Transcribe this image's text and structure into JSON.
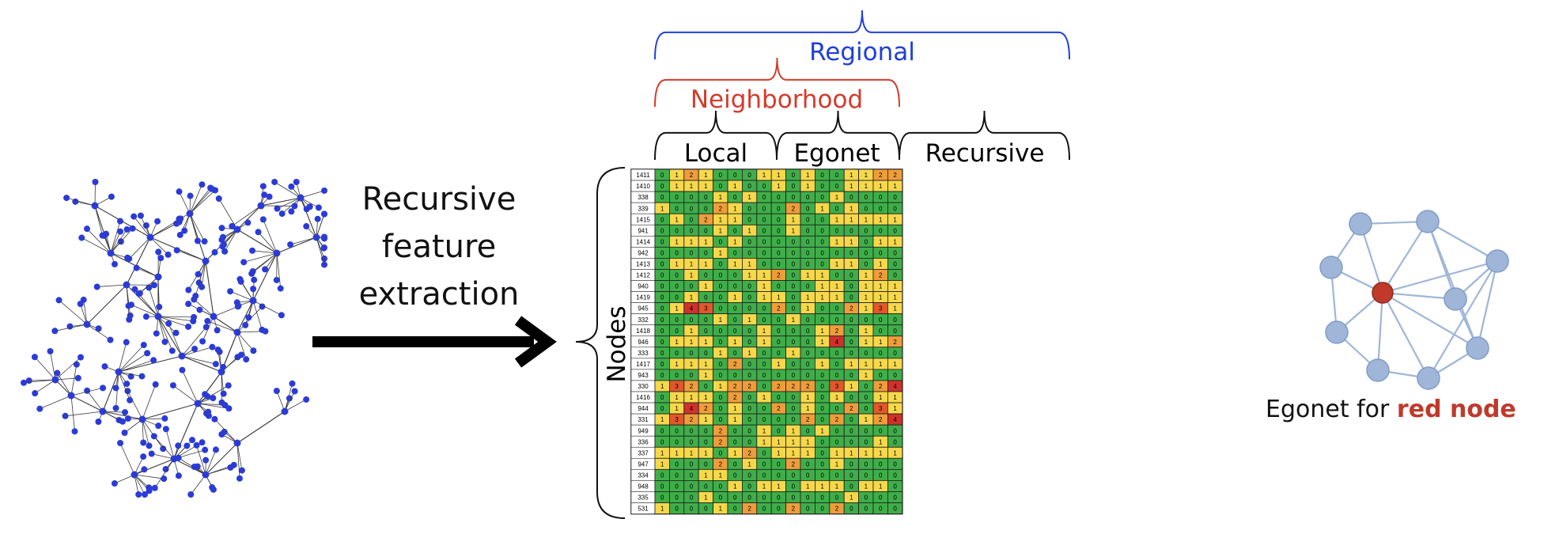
{
  "arrow_label": [
    "Recursive",
    "feature",
    "extraction"
  ],
  "groups": {
    "regional": "Regional",
    "neighborhood": "Neighborhood",
    "local": "Local",
    "egonet": "Egonet",
    "recursive": "Recursive"
  },
  "y_axis_label": "Nodes",
  "egonet_caption": {
    "prefix": "Egonet for ",
    "highlight": "red node"
  },
  "colors": {
    "regional": "#1f3fd8",
    "neighborhood": "#d43a2a",
    "node_blue": "#2b3bd6",
    "ego_node": "#9fb6d8",
    "ego_red": "#c0392b",
    "cell_0": "#3fae49",
    "cell_1": "#f6d84a",
    "cell_2": "#ef9d3a",
    "cell_3": "#e2572b",
    "cell_4": "#d0312d"
  },
  "feature_matrix": {
    "row_ids": [
      "1411",
      "1410",
      "338",
      "339",
      "1415",
      "941",
      "1414",
      "942",
      "1413",
      "1412",
      "940",
      "1419",
      "945",
      "332",
      "1418",
      "946",
      "333",
      "1417",
      "943",
      "330",
      "1416",
      "944",
      "331",
      "949",
      "336",
      "337",
      "947",
      "334",
      "948",
      "335",
      "531"
    ],
    "values": [
      [
        0,
        1,
        2,
        1,
        0,
        0,
        0,
        1,
        1,
        0,
        1,
        0,
        0,
        1,
        1,
        2,
        2
      ],
      [
        0,
        1,
        1,
        1,
        0,
        1,
        0,
        0,
        1,
        0,
        1,
        0,
        0,
        1,
        1,
        1,
        1
      ],
      [
        0,
        0,
        0,
        0,
        1,
        0,
        1,
        0,
        0,
        0,
        0,
        0,
        1,
        0,
        0,
        0,
        0
      ],
      [
        1,
        0,
        0,
        0,
        2,
        1,
        0,
        0,
        0,
        2,
        0,
        1,
        0,
        1,
        0,
        0,
        0
      ],
      [
        0,
        1,
        0,
        2,
        1,
        1,
        0,
        0,
        0,
        1,
        0,
        0,
        1,
        1,
        1,
        1,
        1
      ],
      [
        0,
        0,
        0,
        0,
        1,
        0,
        1,
        0,
        0,
        1,
        0,
        0,
        0,
        0,
        0,
        0,
        0
      ],
      [
        0,
        1,
        1,
        1,
        0,
        1,
        0,
        0,
        0,
        0,
        0,
        0,
        1,
        1,
        0,
        1,
        1
      ],
      [
        0,
        0,
        0,
        0,
        1,
        0,
        0,
        0,
        0,
        0,
        0,
        0,
        0,
        0,
        0,
        0,
        0
      ],
      [
        0,
        1,
        1,
        1,
        0,
        1,
        1,
        0,
        0,
        0,
        0,
        0,
        1,
        1,
        0,
        1,
        0
      ],
      [
        0,
        0,
        1,
        0,
        0,
        0,
        1,
        1,
        2,
        0,
        1,
        1,
        0,
        0,
        1,
        2,
        0
      ],
      [
        0,
        0,
        0,
        1,
        0,
        0,
        0,
        1,
        0,
        0,
        0,
        1,
        1,
        0,
        1,
        1,
        1
      ],
      [
        0,
        0,
        1,
        0,
        0,
        1,
        0,
        1,
        1,
        0,
        1,
        1,
        1,
        0,
        1,
        1,
        1
      ],
      [
        0,
        1,
        4,
        3,
        0,
        0,
        0,
        0,
        2,
        0,
        1,
        0,
        0,
        2,
        1,
        3,
        1
      ],
      [
        0,
        0,
        0,
        0,
        1,
        0,
        1,
        0,
        0,
        1,
        0,
        0,
        0,
        0,
        0,
        0,
        0
      ],
      [
        0,
        0,
        1,
        0,
        0,
        0,
        0,
        1,
        0,
        0,
        0,
        1,
        2,
        0,
        1,
        0,
        0
      ],
      [
        0,
        1,
        1,
        1,
        0,
        1,
        0,
        1,
        0,
        0,
        0,
        1,
        4,
        0,
        1,
        1,
        2
      ],
      [
        0,
        0,
        0,
        0,
        1,
        0,
        1,
        0,
        0,
        1,
        0,
        0,
        0,
        0,
        0,
        0,
        0
      ],
      [
        0,
        1,
        1,
        1,
        0,
        2,
        0,
        0,
        1,
        0,
        0,
        1,
        0,
        1,
        1,
        1,
        1
      ],
      [
        0,
        0,
        0,
        1,
        0,
        0,
        0,
        0,
        0,
        0,
        0,
        0,
        0,
        0,
        1,
        0,
        0
      ],
      [
        1,
        3,
        2,
        0,
        1,
        2,
        2,
        0,
        2,
        2,
        2,
        0,
        3,
        1,
        0,
        2,
        4
      ],
      [
        0,
        1,
        1,
        1,
        0,
        2,
        0,
        1,
        0,
        0,
        1,
        0,
        1,
        0,
        0,
        1,
        1
      ],
      [
        0,
        1,
        4,
        2,
        0,
        1,
        0,
        0,
        2,
        0,
        1,
        0,
        0,
        2,
        0,
        3,
        1
      ],
      [
        1,
        3,
        2,
        1,
        0,
        1,
        0,
        0,
        0,
        0,
        2,
        0,
        2,
        0,
        1,
        2,
        4
      ],
      [
        0,
        0,
        0,
        0,
        2,
        0,
        0,
        1,
        0,
        1,
        0,
        1,
        0,
        0,
        0,
        0,
        0
      ],
      [
        0,
        0,
        0,
        0,
        2,
        0,
        0,
        1,
        1,
        1,
        1,
        0,
        0,
        0,
        0,
        1,
        0
      ],
      [
        1,
        1,
        1,
        1,
        0,
        1,
        2,
        0,
        1,
        1,
        1,
        0,
        1,
        1,
        1,
        1,
        1
      ],
      [
        1,
        0,
        0,
        0,
        2,
        0,
        1,
        0,
        0,
        2,
        0,
        0,
        1,
        0,
        0,
        0,
        0
      ],
      [
        0,
        0,
        0,
        1,
        1,
        0,
        0,
        0,
        0,
        0,
        0,
        0,
        0,
        0,
        0,
        0,
        0
      ],
      [
        0,
        0,
        0,
        0,
        0,
        1,
        0,
        1,
        1,
        0,
        1,
        1,
        1,
        0,
        1,
        1,
        0
      ],
      [
        0,
        0,
        0,
        1,
        0,
        0,
        0,
        0,
        0,
        0,
        0,
        0,
        0,
        1,
        0,
        0,
        0
      ],
      [
        1,
        0,
        0,
        0,
        1,
        0,
        2,
        0,
        0,
        2,
        0,
        0,
        2,
        0,
        0,
        0,
        0
      ]
    ]
  }
}
